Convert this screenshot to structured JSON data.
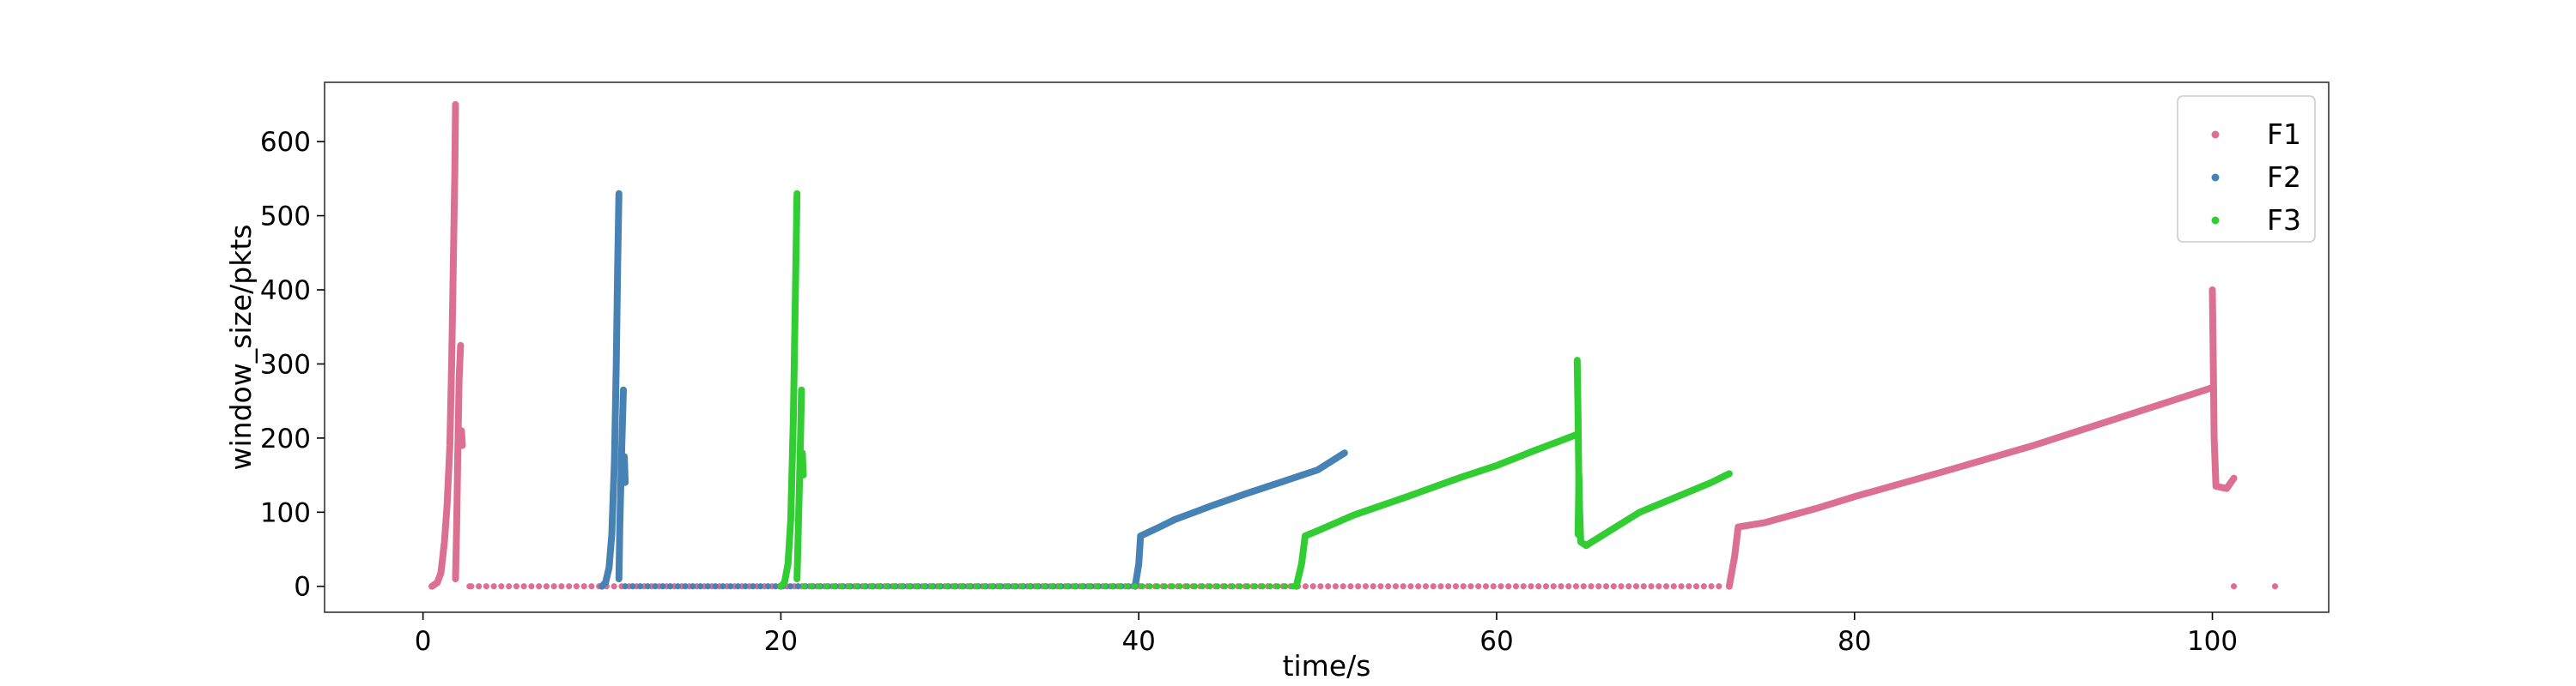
{
  "chart_data": {
    "type": "scatter",
    "xlabel": "time/s",
    "ylabel": "window_size/pkts",
    "xlim": [
      -5.5,
      106.5
    ],
    "ylim": [
      -35,
      680
    ],
    "xticks": [
      0,
      20,
      40,
      60,
      80,
      100
    ],
    "yticks": [
      0,
      100,
      200,
      300,
      400,
      500,
      600
    ],
    "grid": false,
    "legend_position": "top-right",
    "series": [
      {
        "name": "F1",
        "color": "#db7093",
        "segments": [
          [
            [
              0.5,
              0
            ],
            [
              0.8,
              5
            ],
            [
              1.0,
              18
            ],
            [
              1.2,
              60
            ],
            [
              1.35,
              110
            ],
            [
              1.5,
              190
            ],
            [
              1.6,
              300
            ],
            [
              1.7,
              440
            ],
            [
              1.78,
              560
            ],
            [
              1.82,
              650
            ]
          ],
          [
            [
              1.82,
              10
            ],
            [
              1.88,
              80
            ],
            [
              1.95,
              190
            ],
            [
              2.02,
              280
            ],
            [
              2.1,
              325
            ]
          ],
          [
            [
              2.1,
              190
            ],
            [
              2.15,
              210
            ],
            [
              2.2,
              190
            ]
          ],
          [
            [
              73.0,
              0
            ],
            [
              73.3,
              40
            ],
            [
              73.5,
              80
            ],
            [
              75,
              86
            ],
            [
              78,
              106
            ],
            [
              80,
              121
            ],
            [
              85,
              155
            ],
            [
              90,
              190
            ],
            [
              95,
              229
            ],
            [
              100,
              268
            ]
          ],
          [
            [
              100,
              400
            ],
            [
              100.05,
              300
            ],
            [
              100.1,
              200
            ],
            [
              100.2,
              135
            ],
            [
              100.8,
              132
            ],
            [
              101.2,
              146
            ]
          ]
        ],
        "dots": [
          [
            2.6,
            0
          ],
          [
            101.2,
            0
          ],
          [
            103.5,
            0
          ]
        ],
        "flat": [
          [
            2.7,
            72.8,
            0
          ]
        ]
      },
      {
        "name": "F2",
        "color": "#4682b4",
        "segments": [
          [
            [
              10.0,
              0
            ],
            [
              10.2,
              5
            ],
            [
              10.4,
              25
            ],
            [
              10.55,
              70
            ],
            [
              10.7,
              170
            ],
            [
              10.8,
              300
            ],
            [
              10.88,
              430
            ],
            [
              10.95,
              530
            ]
          ],
          [
            [
              10.95,
              10
            ],
            [
              11.0,
              80
            ],
            [
              11.1,
              180
            ],
            [
              11.2,
              265
            ]
          ],
          [
            [
              11.2,
              140
            ],
            [
              11.25,
              175
            ],
            [
              11.3,
              140
            ]
          ],
          [
            [
              39.8,
              0
            ],
            [
              40.0,
              30
            ],
            [
              40.1,
              68
            ],
            [
              41,
              78
            ],
            [
              42,
              90
            ],
            [
              44,
              108
            ],
            [
              46,
              125
            ],
            [
              48,
              141
            ],
            [
              50,
              157
            ],
            [
              51.5,
              180
            ]
          ]
        ],
        "dots": [],
        "flat": [
          [
            11.3,
            39.8,
            0
          ]
        ]
      },
      {
        "name": "F3",
        "color": "#32cd32",
        "segments": [
          [
            [
              20.0,
              0
            ],
            [
              20.2,
              5
            ],
            [
              20.4,
              30
            ],
            [
              20.55,
              90
            ],
            [
              20.7,
              230
            ],
            [
              20.8,
              380
            ],
            [
              20.9,
              530
            ]
          ],
          [
            [
              20.9,
              10
            ],
            [
              21.0,
              100
            ],
            [
              21.1,
              200
            ],
            [
              21.15,
              265
            ]
          ],
          [
            [
              21.15,
              150
            ],
            [
              21.2,
              180
            ],
            [
              21.25,
              150
            ]
          ],
          [
            [
              48.8,
              0
            ],
            [
              49.1,
              30
            ],
            [
              49.3,
              68
            ],
            [
              50,
              75
            ],
            [
              52,
              96
            ],
            [
              55,
              121
            ],
            [
              58,
              147
            ],
            [
              60,
              163
            ],
            [
              62,
              182
            ],
            [
              64.5,
              205
            ]
          ],
          [
            [
              64.5,
              305
            ],
            [
              64.55,
              230
            ],
            [
              64.6,
              130
            ],
            [
              64.7,
              60
            ],
            [
              65,
              55
            ],
            [
              66,
              70
            ],
            [
              68,
              100
            ],
            [
              70,
              120
            ],
            [
              72,
              140
            ],
            [
              73.0,
              152
            ]
          ],
          [
            [
              64.55,
              70
            ],
            [
              64.6,
              150
            ],
            [
              64.65,
              70
            ]
          ]
        ],
        "dots": [],
        "flat": [
          [
            21.3,
            48.8,
            0
          ]
        ]
      }
    ]
  }
}
